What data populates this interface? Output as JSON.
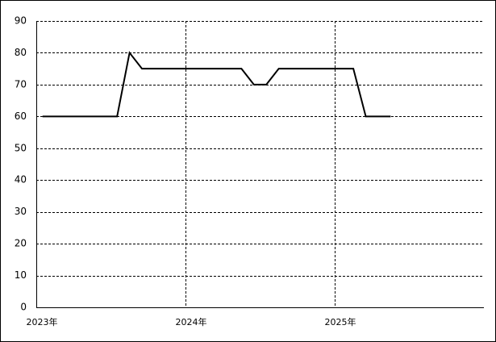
{
  "chart_data": {
    "type": "line",
    "x": [
      2023.0417,
      2023.125,
      2023.2083,
      2023.2917,
      2023.375,
      2023.4583,
      2023.5417,
      2023.625,
      2023.7083,
      2023.7917,
      2023.875,
      2023.9583,
      2024.0417,
      2024.125,
      2024.2083,
      2024.2917,
      2024.375,
      2024.4583,
      2024.5417,
      2024.625,
      2024.7083,
      2024.7917,
      2024.875,
      2024.9583,
      2025.0417,
      2025.125,
      2025.2083,
      2025.2917,
      2025.375
    ],
    "series": [
      {
        "color": "#000000",
        "values": [
          60,
          60,
          60,
          60,
          60,
          60,
          60,
          80,
          75,
          75,
          75,
          75,
          75,
          75,
          75,
          75,
          75,
          70,
          70,
          75,
          75,
          75,
          75,
          75,
          75,
          75,
          60,
          60,
          60
        ]
      }
    ],
    "xlim": [
      2023,
      2026
    ],
    "xticks": [
      {
        "value": 2023,
        "label": "2023年"
      },
      {
        "value": 2024,
        "label": "2024年"
      },
      {
        "value": 2025,
        "label": "2025年"
      }
    ],
    "ylim": [
      0,
      90
    ],
    "yticks": [
      0,
      10,
      20,
      30,
      40,
      50,
      60,
      70,
      80,
      90
    ],
    "grid": true
  }
}
